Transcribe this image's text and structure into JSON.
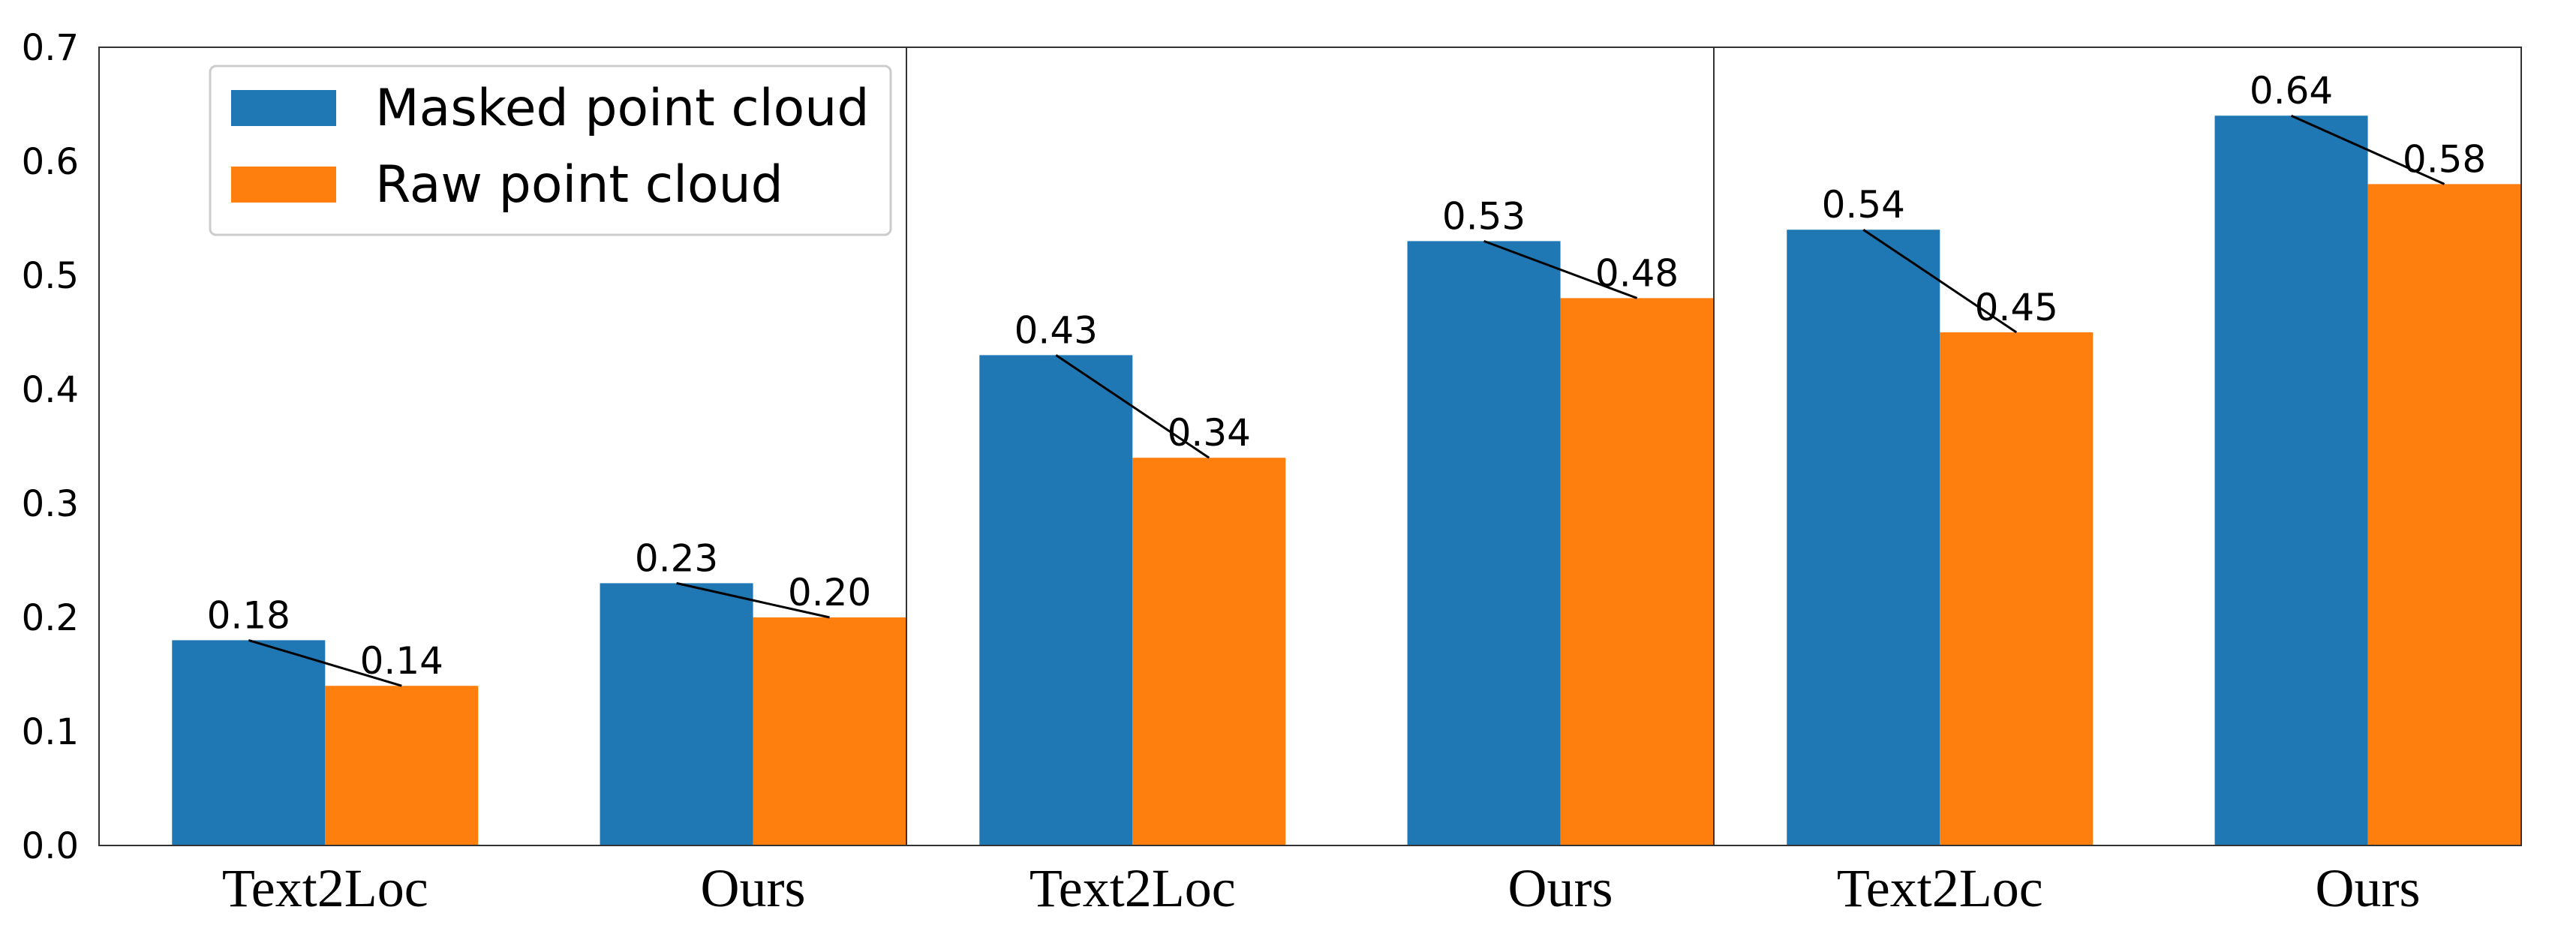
{
  "chart_data": {
    "type": "bar",
    "title": "",
    "xlabel": "",
    "ylabel": "",
    "ylim": [
      0,
      0.7
    ],
    "yticks": [
      "0.0",
      "0.1",
      "0.2",
      "0.3",
      "0.4",
      "0.5",
      "0.6",
      "0.7"
    ],
    "categories": [
      "Text2Loc",
      "Ours",
      "Text2Loc",
      "Ours",
      "Text2Loc",
      "Ours"
    ],
    "series": [
      {
        "name": "Masked point cloud",
        "color": "#1f77b4",
        "values": [
          0.18,
          0.23,
          0.43,
          0.53,
          0.54,
          0.64
        ],
        "labels": [
          "0.18",
          "0.23",
          "0.43",
          "0.53",
          "0.54",
          "0.64"
        ]
      },
      {
        "name": "Raw point cloud",
        "color": "#ff7f0e",
        "values": [
          0.14,
          0.2,
          0.34,
          0.48,
          0.45,
          0.58
        ],
        "labels": [
          "0.14",
          "0.20",
          "0.34",
          "0.48",
          "0.45",
          "0.58"
        ]
      }
    ],
    "panels": 3,
    "legend_position": "top-left",
    "grid": false,
    "connector_lines": true
  }
}
